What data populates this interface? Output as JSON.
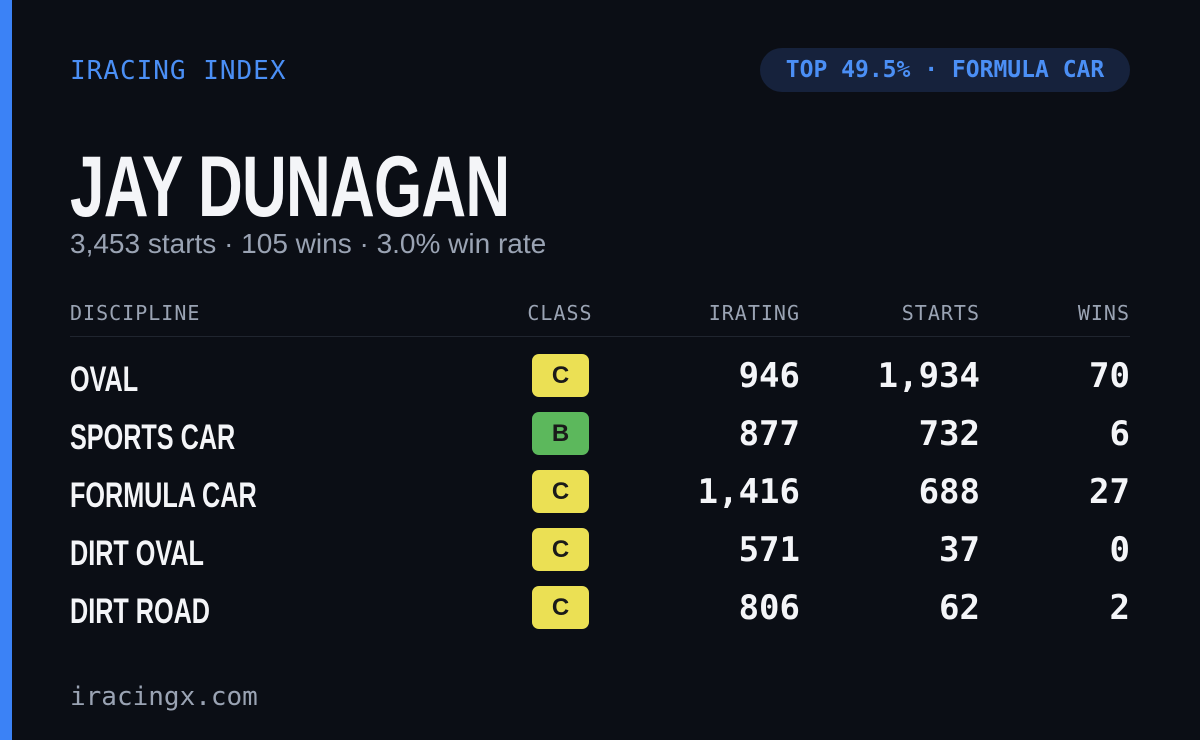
{
  "brand": "IRACING INDEX",
  "badge": "TOP 49.5% · FORMULA CAR",
  "driver": {
    "name": "JAY DUNAGAN",
    "summary": "3,453 starts · 105 wins · 3.0% win rate"
  },
  "table": {
    "headers": [
      "DISCIPLINE",
      "CLASS",
      "IRATING",
      "STARTS",
      "WINS"
    ],
    "rows": [
      {
        "discipline": "OVAL",
        "class": "C",
        "class_color": "#ebe054",
        "irating": "946",
        "starts": "1,934",
        "wins": "70"
      },
      {
        "discipline": "SPORTS CAR",
        "class": "B",
        "class_color": "#5cb85c",
        "irating": "877",
        "starts": "732",
        "wins": "6"
      },
      {
        "discipline": "FORMULA CAR",
        "class": "C",
        "class_color": "#ebe054",
        "irating": "1,416",
        "starts": "688",
        "wins": "27"
      },
      {
        "discipline": "DIRT OVAL",
        "class": "C",
        "class_color": "#ebe054",
        "irating": "571",
        "starts": "37",
        "wins": "0"
      },
      {
        "discipline": "DIRT ROAD",
        "class": "C",
        "class_color": "#ebe054",
        "irating": "806",
        "starts": "62",
        "wins": "2"
      }
    ]
  },
  "footer": "iracingx.com"
}
